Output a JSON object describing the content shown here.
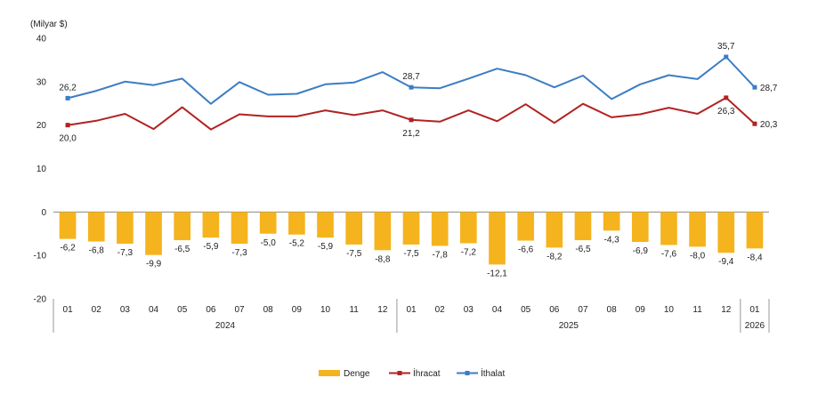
{
  "colors": {
    "denge": "#F5B31D",
    "ihracat": "#B22222",
    "ithalat": "#3B7DC4",
    "axis": "#888888",
    "grid_bg": "#ffffff"
  },
  "chart_data": {
    "type": "bar+line",
    "unit_label": "(Milyar $)",
    "ylim": [
      -20,
      40
    ],
    "yticks": [
      "40",
      "30",
      "20",
      "10",
      "0",
      "-10",
      "-20"
    ],
    "ytick_values": [
      40,
      30,
      20,
      10,
      0,
      -10,
      -20
    ],
    "categories": [
      "01",
      "02",
      "03",
      "04",
      "05",
      "06",
      "07",
      "08",
      "09",
      "10",
      "11",
      "12",
      "01",
      "02",
      "03",
      "04",
      "05",
      "06",
      "07",
      "08",
      "09",
      "10",
      "11",
      "12",
      "01"
    ],
    "years": [
      {
        "label": "2024",
        "count": 12
      },
      {
        "label": "2025",
        "count": 12
      },
      {
        "label": "2026",
        "count": 1
      }
    ],
    "series": [
      {
        "name": "Denge",
        "kind": "bar",
        "values": [
          -6.2,
          -6.8,
          -7.3,
          -9.9,
          -6.5,
          -5.9,
          -7.3,
          -5.0,
          -5.2,
          -5.9,
          -7.5,
          -8.8,
          -7.5,
          -7.8,
          -7.2,
          -12.1,
          -6.6,
          -8.2,
          -6.5,
          -4.3,
          -6.9,
          -7.6,
          -8.0,
          -9.4,
          -8.4
        ],
        "labels": [
          "-6,2",
          "-6,8",
          "-7,3",
          "-9,9",
          "-6,5",
          "-5,9",
          "-7,3",
          "-5,0",
          "-5,2",
          "-5,9",
          "-7,5",
          "-8,8",
          "-7,5",
          "-7,8",
          "-7,2",
          "-12,1",
          "-6,6",
          "-8,2",
          "-6,5",
          "-4,3",
          "-6,9",
          "-7,6",
          "-8,0",
          "-9,4",
          "-8,4"
        ]
      },
      {
        "name": "İhracat",
        "kind": "line",
        "values": [
          20.0,
          21.0,
          22.6,
          19.1,
          24.1,
          19.0,
          22.5,
          22.0,
          22.0,
          23.4,
          22.3,
          23.4,
          21.2,
          20.8,
          23.4,
          20.9,
          24.8,
          20.5,
          24.9,
          21.8,
          22.5,
          24.0,
          22.6,
          26.3,
          20.3
        ],
        "labeled": [
          {
            "index": 0,
            "text": "20,0",
            "pos": "below"
          },
          {
            "index": 12,
            "text": "21,2",
            "pos": "below"
          },
          {
            "index": 23,
            "text": "26,3",
            "pos": "below"
          },
          {
            "index": 24,
            "text": "20,3",
            "pos": "right"
          }
        ]
      },
      {
        "name": "İthalat",
        "kind": "line",
        "values": [
          26.2,
          27.9,
          30.0,
          29.2,
          30.7,
          24.9,
          29.9,
          27.0,
          27.2,
          29.4,
          29.8,
          32.2,
          28.7,
          28.5,
          30.7,
          33.0,
          31.5,
          28.7,
          31.4,
          26.0,
          29.4,
          31.5,
          30.6,
          35.7,
          28.7
        ],
        "labeled": [
          {
            "index": 0,
            "text": "26,2",
            "pos": "above"
          },
          {
            "index": 12,
            "text": "28,7",
            "pos": "above"
          },
          {
            "index": 23,
            "text": "35,7",
            "pos": "above"
          },
          {
            "index": 24,
            "text": "28,7",
            "pos": "right"
          }
        ]
      }
    ],
    "legend": [
      "Denge",
      "İhracat",
      "İthalat"
    ],
    "legend_position": "bottom-center"
  }
}
